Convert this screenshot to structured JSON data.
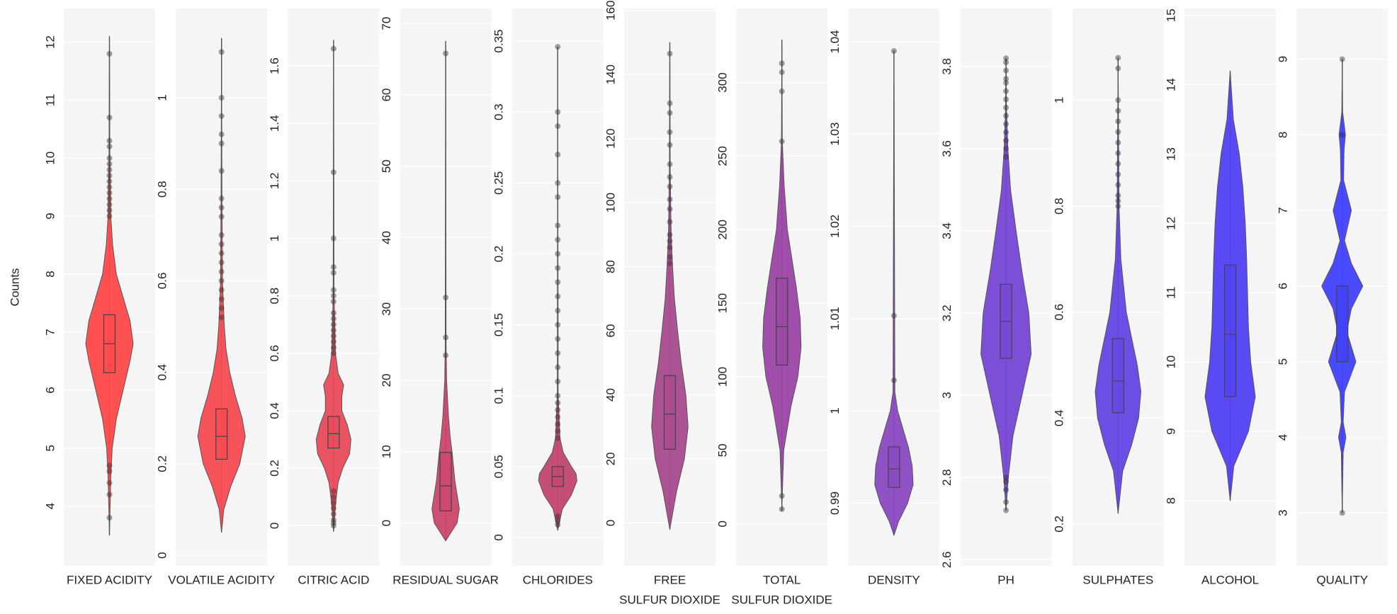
{
  "chart_data": [
    {
      "type": "violin",
      "ylabel": "Counts",
      "xlabel": [
        "FIXED ACIDITY"
      ],
      "color": "#ff4848",
      "grid": true,
      "ylim": [
        2.97,
        12.58
      ],
      "yticks": [
        4,
        5,
        6,
        7,
        8,
        9,
        10,
        11,
        12
      ],
      "violin": {
        "y": [
          3.5,
          4.5,
          5,
          5.5,
          6,
          6.5,
          6.8,
          7.2,
          7.6,
          8,
          8.5,
          9,
          10,
          12.1
        ],
        "width": [
          0,
          0.03,
          0.06,
          0.15,
          0.3,
          0.45,
          0.52,
          0.45,
          0.3,
          0.15,
          0.07,
          0.03,
          0.01,
          0
        ]
      },
      "box": {
        "q1": 6.3,
        "median": 6.8,
        "q3": 7.3
      },
      "outliers": [
        3.8,
        4.2,
        4.4,
        4.6,
        4.7,
        9.0,
        9.1,
        9.2,
        9.3,
        9.4,
        9.5,
        9.6,
        9.7,
        9.8,
        9.9,
        10.0,
        10.2,
        10.3,
        10.7,
        11.8
      ]
    },
    {
      "type": "violin",
      "xlabel": [
        "VOLATILE ACIDITY"
      ],
      "color": "#f64a52",
      "grid": true,
      "ylim": [
        -0.023,
        1.195
      ],
      "yticks": [
        0,
        0.2,
        0.4,
        0.6,
        0.8,
        1
      ],
      "violin": {
        "y": [
          0.05,
          0.1,
          0.15,
          0.2,
          0.26,
          0.3,
          0.35,
          0.4,
          0.45,
          0.5,
          0.6,
          0.8,
          1.13
        ],
        "width": [
          0,
          0.05,
          0.2,
          0.4,
          0.52,
          0.45,
          0.3,
          0.18,
          0.1,
          0.06,
          0.02,
          0.01,
          0
        ]
      },
      "box": {
        "q1": 0.21,
        "median": 0.26,
        "q3": 0.32
      },
      "outliers": [
        0.52,
        0.54,
        0.56,
        0.58,
        0.6,
        0.62,
        0.64,
        0.66,
        0.68,
        0.7,
        0.74,
        0.76,
        0.78,
        0.84,
        0.9,
        0.92,
        0.96,
        1.0,
        1.1
      ]
    },
    {
      "type": "violin",
      "xlabel": [
        "CITRIC ACID"
      ],
      "color": "#e84a5a",
      "grid": true,
      "ylim": [
        -0.14,
        1.8
      ],
      "yticks": [
        0,
        0.2,
        0.4,
        0.6,
        0.8,
        1,
        1.2,
        1.4,
        1.6
      ],
      "violin": {
        "y": [
          -0.02,
          0.05,
          0.1,
          0.15,
          0.2,
          0.25,
          0.3,
          0.35,
          0.4,
          0.45,
          0.49,
          0.53,
          0.6,
          0.8,
          1.69
        ],
        "width": [
          0,
          0.03,
          0.06,
          0.1,
          0.2,
          0.35,
          0.38,
          0.3,
          0.18,
          0.18,
          0.22,
          0.1,
          0.04,
          0.01,
          0
        ]
      },
      "box": {
        "q1": 0.27,
        "median": 0.32,
        "q3": 0.38
      },
      "outliers": [
        0,
        0.01,
        0.02,
        0.04,
        0.06,
        0.08,
        0.1,
        0.12,
        0.6,
        0.62,
        0.64,
        0.66,
        0.68,
        0.7,
        0.72,
        0.74,
        0.78,
        0.8,
        0.82,
        0.88,
        0.9,
        1.0,
        1.23,
        1.66
      ]
    },
    {
      "type": "violin",
      "xlabel": [
        "RESIDUAL SUGAR"
      ],
      "color": "#cc466c",
      "grid": true,
      "ylim": [
        -6,
        72.1
      ],
      "yticks": [
        0,
        10,
        20,
        30,
        40,
        50,
        60,
        70
      ],
      "violin": {
        "y": [
          -2.5,
          0,
          2,
          4,
          6,
          8,
          10,
          12,
          15,
          20,
          25,
          67.5
        ],
        "width": [
          0,
          0.25,
          0.3,
          0.25,
          0.2,
          0.17,
          0.14,
          0.1,
          0.06,
          0.02,
          0.01,
          0
        ]
      },
      "box": {
        "q1": 1.7,
        "median": 5.2,
        "q3": 9.9
      },
      "outliers": [
        23.5,
        26,
        31.6,
        65.8
      ]
    },
    {
      "type": "violin",
      "xlabel": [
        "CHLORIDES"
      ],
      "color": "#c24472",
      "grid": true,
      "ylim": [
        -0.02,
        0.373
      ],
      "yticks": [
        0,
        0.05,
        0.1,
        0.15,
        0.2,
        0.25,
        0.3,
        0.35
      ],
      "violin": {
        "y": [
          0.005,
          0.02,
          0.03,
          0.04,
          0.045,
          0.05,
          0.06,
          0.07,
          0.1,
          0.346
        ],
        "width": [
          0,
          0.1,
          0.3,
          0.42,
          0.4,
          0.3,
          0.12,
          0.05,
          0.01,
          0
        ]
      },
      "box": {
        "q1": 0.036,
        "median": 0.043,
        "q3": 0.05
      },
      "outliers": [
        0.009,
        0.012,
        0.015,
        0.07,
        0.075,
        0.08,
        0.085,
        0.09,
        0.095,
        0.1,
        0.11,
        0.12,
        0.13,
        0.14,
        0.15,
        0.16,
        0.17,
        0.18,
        0.19,
        0.2,
        0.21,
        0.22,
        0.24,
        0.25,
        0.27,
        0.29,
        0.3,
        0.346
      ]
    },
    {
      "type": "violin",
      "xlabel": [
        "FREE",
        "SULFUR DIOXIDE"
      ],
      "color": "#a84a8e",
      "grid": true,
      "ylim": [
        -13.4,
        160.6
      ],
      "yticks": [
        0,
        20,
        40,
        60,
        80,
        100,
        120,
        140,
        160
      ],
      "violin": {
        "y": [
          -2,
          10,
          20,
          30,
          40,
          50,
          60,
          70,
          80,
          90,
          110,
          150
        ],
        "width": [
          0,
          0.15,
          0.32,
          0.4,
          0.35,
          0.25,
          0.17,
          0.1,
          0.06,
          0.03,
          0.01,
          0
        ]
      },
      "box": {
        "q1": 23,
        "median": 34,
        "q3": 46
      },
      "outliers": [
        81,
        83,
        86,
        88,
        90,
        94,
        98,
        101,
        105,
        108,
        112,
        118,
        122,
        128,
        131,
        146.5
      ]
    },
    {
      "type": "violin",
      "xlabel": [
        "TOTAL",
        "SULFUR DIOXIDE"
      ],
      "color": "#9a46a4",
      "grid": true,
      "ylim": [
        -28.5,
        350.3
      ],
      "yticks": [
        0,
        50,
        100,
        150,
        200,
        250,
        300
      ],
      "violin": {
        "y": [
          9,
          20,
          50,
          80,
          100,
          120,
          140,
          160,
          180,
          200,
          230,
          260,
          329
        ],
        "width": [
          0,
          0.01,
          0.04,
          0.2,
          0.35,
          0.42,
          0.4,
          0.32,
          0.22,
          0.12,
          0.05,
          0.01,
          0
        ]
      },
      "box": {
        "q1": 108,
        "median": 134,
        "q3": 167
      },
      "outliers": [
        10,
        19,
        260,
        294,
        307,
        313
      ]
    },
    {
      "type": "violin",
      "xlabel": [
        "DENSITY"
      ],
      "color": "#8a48c2",
      "grid": true,
      "ylim": [
        0.9832,
        1.0436
      ],
      "yticks": [
        0.99,
        1,
        1.01,
        1.02,
        1.03,
        1.04
      ],
      "violin": {
        "y": [
          0.9865,
          0.988,
          0.99,
          0.992,
          0.994,
          0.996,
          0.998,
          1.0,
          1.002,
          1.039
        ],
        "width": [
          0,
          0.1,
          0.3,
          0.42,
          0.4,
          0.32,
          0.2,
          0.08,
          0.02,
          0
        ]
      },
      "box": {
        "q1": 0.9917,
        "median": 0.9937,
        "q3": 0.9961
      },
      "outliers": [
        1.0033,
        1.0103,
        1.039
      ]
    },
    {
      "type": "violin",
      "xlabel": [
        "PH"
      ],
      "color": "#7646d4",
      "grid": true,
      "ylim": [
        2.585,
        3.941
      ],
      "yticks": [
        2.6,
        2.8,
        3,
        3.2,
        3.4,
        3.6,
        3.8
      ],
      "violin": {
        "y": [
          2.72,
          2.8,
          2.9,
          3.0,
          3.1,
          3.2,
          3.3,
          3.4,
          3.5,
          3.6,
          3.7,
          3.82
        ],
        "width": [
          0,
          0.05,
          0.15,
          0.35,
          0.55,
          0.5,
          0.35,
          0.22,
          0.1,
          0.04,
          0.01,
          0
        ]
      },
      "box": {
        "q1": 3.09,
        "median": 3.18,
        "q3": 3.27
      },
      "outliers": [
        2.72,
        2.74,
        2.77,
        2.79,
        2.8,
        3.58,
        3.6,
        3.62,
        3.64,
        3.66,
        3.68,
        3.7,
        3.72,
        3.74,
        3.76,
        3.77,
        3.79,
        3.81,
        3.82
      ]
    },
    {
      "type": "violin",
      "xlabel": [
        "SULPHATES"
      ],
      "color": "#6444e4",
      "grid": true,
      "ylim": [
        0.121,
        1.173
      ],
      "yticks": [
        0.2,
        0.4,
        0.6,
        0.8,
        1
      ],
      "violin": {
        "y": [
          0.22,
          0.3,
          0.35,
          0.4,
          0.45,
          0.5,
          0.55,
          0.6,
          0.7,
          0.8,
          1.08
        ],
        "width": [
          0,
          0.1,
          0.3,
          0.45,
          0.5,
          0.42,
          0.3,
          0.18,
          0.06,
          0.02,
          0
        ]
      },
      "box": {
        "q1": 0.41,
        "median": 0.47,
        "q3": 0.55
      },
      "outliers": [
        0.8,
        0.81,
        0.82,
        0.84,
        0.86,
        0.88,
        0.9,
        0.92,
        0.94,
        0.96,
        0.98,
        1.0,
        1.06,
        1.08
      ]
    },
    {
      "type": "violin",
      "xlabel": [
        "ALCOHOL"
      ],
      "color": "#5040f2",
      "grid": true,
      "ylim": [
        7.06,
        15.1
      ],
      "yticks": [
        8,
        9,
        10,
        11,
        12,
        13,
        14,
        15
      ],
      "violin": {
        "y": [
          8,
          8.5,
          9,
          9.5,
          10,
          10.5,
          11,
          11.5,
          12,
          12.5,
          13,
          13.5,
          14.2
        ],
        "width": [
          0,
          0.08,
          0.4,
          0.55,
          0.45,
          0.4,
          0.38,
          0.36,
          0.33,
          0.28,
          0.2,
          0.07,
          0
        ]
      },
      "box": {
        "q1": 9.5,
        "median": 10.4,
        "q3": 11.4
      },
      "outliers": []
    },
    {
      "type": "violin",
      "xlabel": [
        "QUALITY"
      ],
      "color": "#4040ff",
      "grid": true,
      "ylim": [
        2.3,
        9.67
      ],
      "yticks": [
        3,
        4,
        5,
        6,
        7,
        8,
        9
      ],
      "violin": {
        "y": [
          3,
          3.8,
          4,
          4.2,
          4.6,
          5,
          5.4,
          5.7,
          6,
          6.3,
          6.6,
          7,
          7.4,
          7.8,
          8,
          8.3,
          9
        ],
        "width": [
          0,
          0.02,
          0.08,
          0.02,
          0.05,
          0.3,
          0.1,
          0.2,
          0.45,
          0.2,
          0.05,
          0.2,
          0.03,
          0.04,
          0.07,
          0.01,
          0
        ]
      },
      "box": {
        "q1": 5,
        "median": 6,
        "q3": 6
      },
      "outliers": [
        3,
        8,
        9
      ]
    }
  ]
}
